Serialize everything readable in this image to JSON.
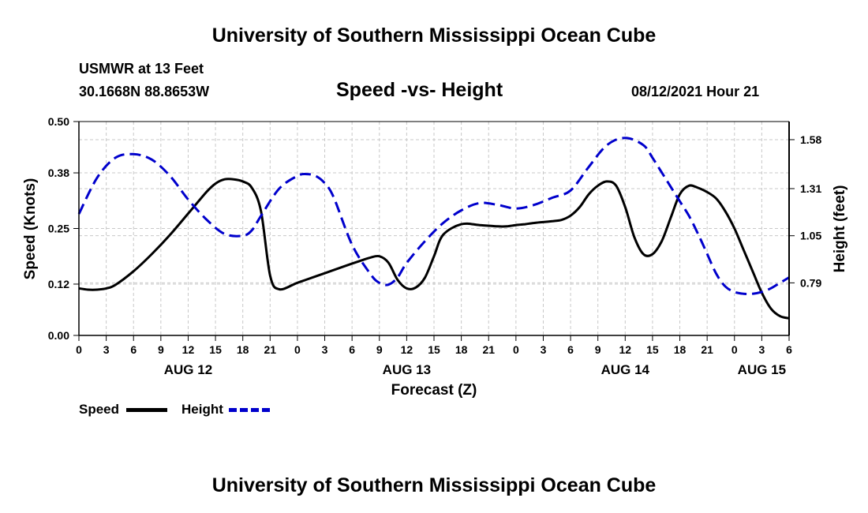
{
  "header": {
    "title": "University of Southern Mississippi Ocean Cube",
    "station": "USMWR at 13 Feet",
    "coords": "30.1668N  88.8653W",
    "chart_title": "Speed -vs- Height",
    "datetime": "08/12/2021 Hour 21"
  },
  "footer": {
    "title": "University of Southern Mississippi Ocean Cube"
  },
  "legend": {
    "speed_label": "Speed",
    "height_label": "Height",
    "speed_color": "#000000",
    "height_color": "#0000cc"
  },
  "chart_data": {
    "type": "line",
    "title": "Speed -vs- Height",
    "xlabel": "Forecast (Z)",
    "ylabel": "Speed (Knots)",
    "y2label": "Height (feet)",
    "x_ticks": [
      "0",
      "3",
      "6",
      "9",
      "12",
      "15",
      "18",
      "21",
      "0",
      "3",
      "6",
      "9",
      "12",
      "15",
      "18",
      "21",
      "0",
      "3",
      "6",
      "9",
      "12",
      "15",
      "18",
      "21",
      "0",
      "3",
      "6"
    ],
    "date_labels": [
      {
        "label": "AUG 12",
        "hour": 12
      },
      {
        "label": "AUG 13",
        "hour": 36
      },
      {
        "label": "AUG 14",
        "hour": 60
      },
      {
        "label": "AUG 15",
        "hour": 75
      }
    ],
    "xlim": [
      0,
      78
    ],
    "ylim": [
      0,
      0.5
    ],
    "y_ticks": [
      "0.00",
      "0.12",
      "0.25",
      "0.38",
      "0.50"
    ],
    "y2lim": [
      0.5,
      1.68
    ],
    "y2_ticks": [
      "0.79",
      "1.05",
      "1.31",
      "1.58"
    ],
    "series": [
      {
        "name": "Speed",
        "axis": "left",
        "x": [
          0,
          1,
          2,
          3,
          4,
          6,
          8,
          10,
          12,
          14,
          15,
          16,
          17,
          18,
          19,
          20,
          21,
          22,
          24,
          26,
          28,
          30,
          31,
          32,
          33,
          34,
          35,
          36,
          37,
          38,
          39,
          40,
          42,
          44,
          46,
          47,
          48,
          49,
          50,
          51,
          52,
          53,
          54,
          55,
          56,
          57,
          58,
          59,
          60,
          61,
          62,
          63,
          64,
          65,
          66,
          67,
          68,
          69,
          70,
          71,
          72,
          73,
          74,
          75,
          76,
          77,
          78
        ],
        "values": [
          0.11,
          0.107,
          0.107,
          0.11,
          0.118,
          0.15,
          0.19,
          0.235,
          0.285,
          0.335,
          0.355,
          0.365,
          0.365,
          0.36,
          0.345,
          0.29,
          0.14,
          0.108,
          0.123,
          0.138,
          0.153,
          0.168,
          0.175,
          0.182,
          0.185,
          0.17,
          0.13,
          0.11,
          0.112,
          0.135,
          0.185,
          0.235,
          0.26,
          0.258,
          0.255,
          0.255,
          0.258,
          0.26,
          0.263,
          0.265,
          0.267,
          0.27,
          0.28,
          0.3,
          0.33,
          0.35,
          0.36,
          0.35,
          0.3,
          0.23,
          0.19,
          0.19,
          0.22,
          0.275,
          0.33,
          0.35,
          0.345,
          0.335,
          0.32,
          0.29,
          0.25,
          0.2,
          0.15,
          0.1,
          0.063,
          0.045,
          0.04
        ]
      },
      {
        "name": "Height",
        "axis": "right",
        "x": [
          0,
          2,
          4,
          6,
          8,
          10,
          12,
          14,
          16,
          18,
          19,
          20,
          22,
          24,
          25,
          26,
          27,
          28,
          30,
          32,
          33,
          34,
          35,
          36,
          38,
          40,
          42,
          44,
          46,
          48,
          50,
          52,
          54,
          56,
          58,
          60,
          62,
          63,
          64,
          65,
          66,
          67,
          68,
          69,
          70,
          71,
          72,
          73,
          74,
          75,
          76,
          77,
          78
        ],
        "values": [
          1.17,
          1.37,
          1.48,
          1.5,
          1.47,
          1.38,
          1.25,
          1.14,
          1.06,
          1.05,
          1.08,
          1.16,
          1.31,
          1.38,
          1.39,
          1.38,
          1.34,
          1.26,
          1.0,
          0.84,
          0.79,
          0.78,
          0.82,
          0.9,
          1.02,
          1.12,
          1.19,
          1.23,
          1.22,
          1.2,
          1.22,
          1.26,
          1.3,
          1.43,
          1.55,
          1.59,
          1.55,
          1.48,
          1.4,
          1.32,
          1.24,
          1.16,
          1.06,
          0.95,
          0.84,
          0.77,
          0.74,
          0.73,
          0.73,
          0.74,
          0.76,
          0.79,
          0.82
        ]
      }
    ]
  }
}
